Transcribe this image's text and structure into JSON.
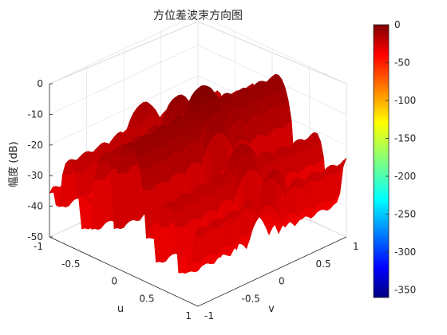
{
  "chart_data": {
    "type": "surface3d",
    "title": "方位差波束方向图",
    "xlabel": "u",
    "ylabel": "v",
    "zlabel": "幅度 (dB)",
    "xlim": [
      -1,
      1
    ],
    "ylim": [
      -1,
      1
    ],
    "zlim": [
      -50,
      0
    ],
    "xticks": [
      "-1",
      "-0.5",
      "0",
      "0.5",
      "1"
    ],
    "yticks": [
      "-1",
      "-0.5",
      "0",
      "0.5",
      "1"
    ],
    "zticks": [
      "0",
      "-10",
      "-20",
      "-30",
      "-40",
      "-50"
    ],
    "grid": true,
    "colorbar": {
      "colormap": "jet",
      "range": [
        -360,
        0
      ],
      "ticks": [
        "0",
        "-50",
        "-100",
        "-150",
        "-200",
        "-250",
        "-300",
        "-350"
      ]
    },
    "peak_db": 0,
    "floor_db": -50
  }
}
